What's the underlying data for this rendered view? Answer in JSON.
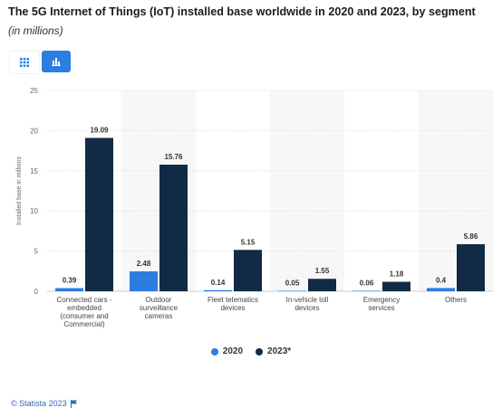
{
  "header": {
    "title": "The 5G Internet of Things (IoT) installed base worldwide in 2020 and 2023, by segment",
    "subtitle": "(in millions)"
  },
  "toolbar": {
    "table_icon": "grid-icon",
    "chart_icon": "bar-chart-icon"
  },
  "footer": {
    "credit": "© Statista 2023",
    "flag_icon": "flag-icon"
  },
  "chart_data": {
    "type": "bar",
    "title": "The 5G Internet of Things (IoT) installed base worldwide in 2020 and 2023, by segment",
    "subtitle": "(in millions)",
    "ylabel": "Installed base in millions",
    "xlabel": "",
    "ylim": [
      0,
      25
    ],
    "yticks": [
      0,
      5,
      10,
      15,
      20,
      25
    ],
    "grid": true,
    "legend_position": "bottom",
    "categories": [
      [
        "Connected cars -",
        "embedded",
        "(consumer and",
        "Commercial)"
      ],
      [
        "Outdoor",
        "surveillance",
        "cameras"
      ],
      [
        "Fleet telematics",
        "devices"
      ],
      [
        "In-vehicle toll",
        "devices"
      ],
      [
        "Emergency",
        "services"
      ],
      [
        "Others"
      ]
    ],
    "series": [
      {
        "name": "2020",
        "color": "#2b7de0",
        "values": [
          0.39,
          2.48,
          0.14,
          0.05,
          0.06,
          0.4
        ]
      },
      {
        "name": "2023*",
        "color": "#122b44",
        "values": [
          19.09,
          15.76,
          5.15,
          1.55,
          1.18,
          5.86
        ]
      }
    ],
    "band_color": "#f7f7f7"
  }
}
